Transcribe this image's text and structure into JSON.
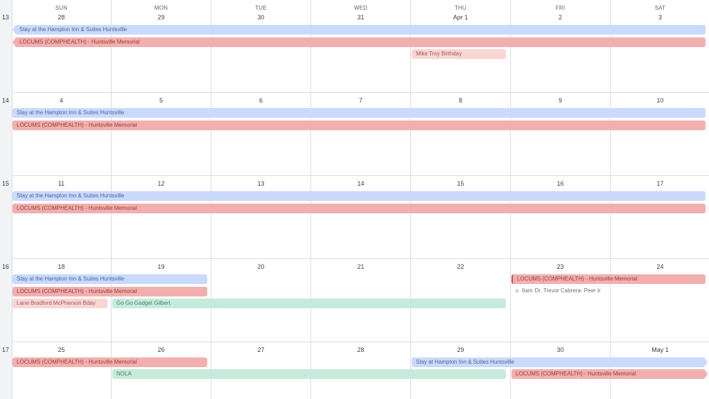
{
  "days_of_week": [
    "SUN",
    "MON",
    "TUE",
    "WED",
    "THU",
    "FRI",
    "SAT"
  ],
  "weeks": [
    {
      "num": "13",
      "dates": [
        "28",
        "29",
        "30",
        "31",
        "Apr 1",
        "2",
        "3"
      ]
    },
    {
      "num": "14",
      "dates": [
        "4",
        "5",
        "6",
        "7",
        "8",
        "9",
        "10"
      ]
    },
    {
      "num": "15",
      "dates": [
        "11",
        "12",
        "13",
        "14",
        "15",
        "16",
        "17"
      ]
    },
    {
      "num": "16",
      "dates": [
        "18",
        "19",
        "20",
        "21",
        "22",
        "23",
        "24"
      ]
    },
    {
      "num": "17",
      "dates": [
        "25",
        "26",
        "27",
        "28",
        "29",
        "30",
        "May 1"
      ]
    }
  ],
  "events": {
    "w13_hampton": "Stay at the Hampton Inn & Suites Huntsville",
    "w13_locums": "LOCUMS (COMPHEALTH) - Huntsville Memorial",
    "w13_mike": "Mike Troy Birthday",
    "w14_hampton": "Stay at the Hampton Inn & Suites Huntsville",
    "w14_locums": "LOCUMS (COMPHEALTH) - Huntsville Memorial",
    "w15_hampton": "Stay at the Hampton Inn & Suites Huntsville",
    "w15_locums": "LOCUMS (COMPHEALTH) - Huntsville Memorial",
    "w16_hampton": "Stay at the Hampton Inn & Suites Huntsville",
    "w16_locums": "LOCUMS (COMPHEALTH) - Huntsville Memorial",
    "w16_lane": "Lane Bradford McPherson Bday",
    "w16_gadget": "Go Go Gadget Gilbert",
    "w16_locums2": "LOCUMS (COMPHEALTH) - Huntsville Memorial",
    "w16_timed_time": "6am",
    "w16_timed_title": "Dr. Trevor Cabrera- Peer Ir",
    "w17_locums": "LOCUMS (COMPHEALTH) - Huntsville Memorial",
    "w17_nola": "NOLA",
    "w17_hampton": "Stay at Hampton Inn & Suites Huntsville",
    "w17_locums2": "LOCUMS (COMPHEALTH) - Huntsville Memorial"
  },
  "colors": {
    "blue": "#c9dafd",
    "red": "#f1b0ae",
    "pink": "#f9d6d4",
    "green": "#c6eadb",
    "weeknum_bg": "#f1f3f4",
    "grid": "#dadce0"
  }
}
